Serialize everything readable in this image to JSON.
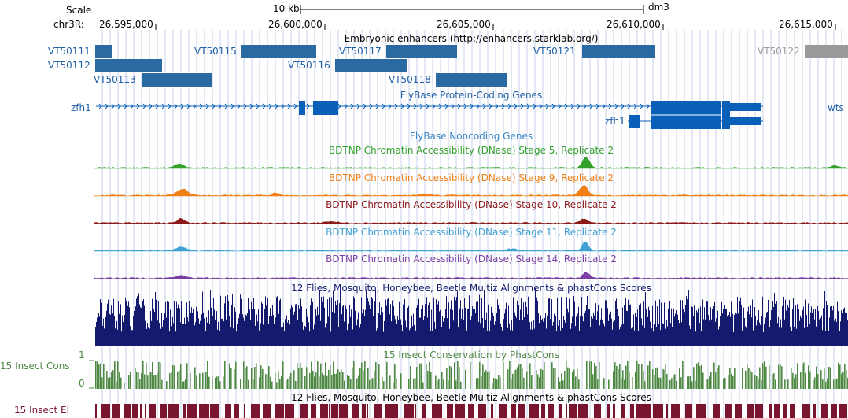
{
  "colors": {
    "enhancer": "#2A6AA3",
    "enhancer_gray": "#9a9a9a",
    "gene": "#0a60b8",
    "stage5": "#33a02c",
    "stage9": "#f07f17",
    "stage10": "#8c1b1b",
    "stage11": "#3fa1d4",
    "stage14": "#7b3fa3",
    "multiz": "#141b6e",
    "phastcons": "#4f8a45",
    "elements": "#7a1530",
    "grid": "#c8cfe8",
    "left_edge": "#f2a0a0"
  },
  "ruler": {
    "scale_label": "Scale",
    "chrom_label": "chr3R:",
    "scale_bar": "10 kb",
    "assembly": "dm3",
    "positions": [
      "26,595,000",
      "26,600,000",
      "26,605,000",
      "26,610,000",
      "26,615,000"
    ]
  },
  "tracks": {
    "enhancers": {
      "title": "Embryonic enhancers (http://enhancers.starklab.org/)",
      "items": [
        "VT50111",
        "VT50112",
        "VT50113",
        "VT50115",
        "VT50116",
        "VT50117",
        "VT50118",
        "VT50121",
        "VT50122"
      ]
    },
    "genes": {
      "title": "FlyBase Protein-Coding Genes",
      "gene1": "zfh1",
      "gene2": "zfh1",
      "gene3": "wts"
    },
    "noncoding": {
      "title": "FlyBase Noncoding Genes"
    },
    "dnase": [
      "BDTNP Chromatin Accessibility (DNase) Stage 5, Replicate 2",
      "BDTNP Chromatin Accessibility (DNase) Stage 9, Replicate 2",
      "BDTNP Chromatin Accessibility (DNase) Stage 10, Replicate 2",
      "BDTNP Chromatin Accessibility (DNase) Stage 11, Replicate 2",
      "BDTNP Chromatin Accessibility (DNase) Stage 14, Replicate 2"
    ],
    "multiz": {
      "title": "12 Flies, Mosquito, Honeybee, Beetle Multiz Alignments & phastCons Scores"
    },
    "phastcons": {
      "title": "15 Insect Conservation by PhastCons",
      "left_label": "15 Insect Cons",
      "ymax": "1",
      "ymin": "0"
    },
    "elements": {
      "title": "12 Flies, Mosquito, Honeybee, Beetle Multiz Alignments & phastCons Scores",
      "left_label": "15 Insect El"
    }
  }
}
